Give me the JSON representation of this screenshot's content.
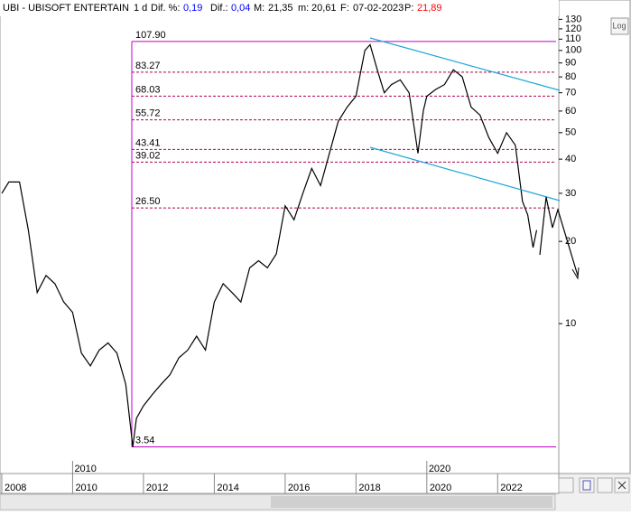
{
  "header": {
    "ticker": "UBI - UBISOFT ENTERTAIN",
    "interval": "1 d",
    "fields": [
      {
        "label": "Dif. %:",
        "value": "0,19",
        "color": "#0000ff"
      },
      {
        "label": "Dif.:",
        "value": "0,04",
        "color": "#0000ff"
      },
      {
        "label": "M:",
        "value": "21,35",
        "color": "#000000"
      },
      {
        "label": "m:",
        "value": "20,61",
        "color": "#000000"
      },
      {
        "label": "F:",
        "value": "07-02-2023",
        "color": "#000000"
      },
      {
        "label": "P:",
        "value": "21,89",
        "color": "#ff0000"
      }
    ]
  },
  "log_button": "Log",
  "chart_data": {
    "type": "line",
    "log_scale": true,
    "color": "#000000",
    "xlim": [
      2007.95,
      2023.7
    ],
    "ylim": [
      2.87,
      153
    ],
    "xticks": [
      2008,
      2010,
      2012,
      2014,
      2016,
      2018,
      2020,
      2022
    ],
    "decade_ticks": [
      2010,
      2020
    ],
    "yticks": [
      10,
      20,
      30,
      40,
      50,
      60,
      70,
      80,
      90,
      100,
      110,
      120,
      130
    ],
    "levels": [
      {
        "value": 107.9,
        "label": "107.90"
      },
      {
        "value": 83.27,
        "label": "83.27"
      },
      {
        "value": 68.03,
        "label": "68.03"
      },
      {
        "value": 55.72,
        "label": "55.72"
      },
      {
        "value": 43.41,
        "label": "43.41"
      },
      {
        "value": 39.02,
        "label": "39.02"
      },
      {
        "value": 26.5,
        "label": "26.50"
      },
      {
        "value": 3.54,
        "label": "3.54"
      }
    ],
    "x": [
      2008.0,
      2008.2,
      2008.5,
      2008.75,
      2009.0,
      2009.25,
      2009.5,
      2009.75,
      2010.0,
      2010.25,
      2010.5,
      2010.75,
      2011.0,
      2011.25,
      2011.5,
      2011.7,
      2011.8,
      2012.0,
      2012.25,
      2012.5,
      2012.75,
      2013.0,
      2013.25,
      2013.5,
      2013.75,
      2014.0,
      2014.25,
      2014.5,
      2014.75,
      2015.0,
      2015.25,
      2015.5,
      2015.75,
      2016.0,
      2016.25,
      2016.5,
      2016.75,
      2017.0,
      2017.25,
      2017.5,
      2017.75,
      2018.0,
      2018.25,
      2018.4,
      2018.6,
      2018.8,
      2019.0,
      2019.25,
      2019.5,
      2019.75,
      2019.9,
      2020.0,
      2020.25,
      2020.5,
      2020.75,
      2021.0,
      2021.25,
      2021.5,
      2021.75,
      2022.0,
      2022.25,
      2022.5,
      2022.7,
      2022.85,
      2023.0,
      2023.1
    ],
    "values": [
      30,
      33,
      33,
      22,
      13,
      15,
      14,
      12,
      11,
      7.8,
      7,
      8,
      8.5,
      7.8,
      6,
      3.54,
      4.5,
      5,
      5.5,
      6,
      6.5,
      7.5,
      8,
      9,
      8,
      12,
      14,
      13,
      12,
      16,
      17,
      16,
      18,
      27,
      24,
      30,
      37,
      32,
      42,
      55,
      62,
      68,
      100,
      105,
      85,
      70,
      75,
      78,
      70,
      42,
      60,
      68,
      72,
      75,
      85,
      80,
      62,
      58,
      48,
      42,
      50,
      45,
      28,
      25,
      19,
      22
    ]
  }
}
